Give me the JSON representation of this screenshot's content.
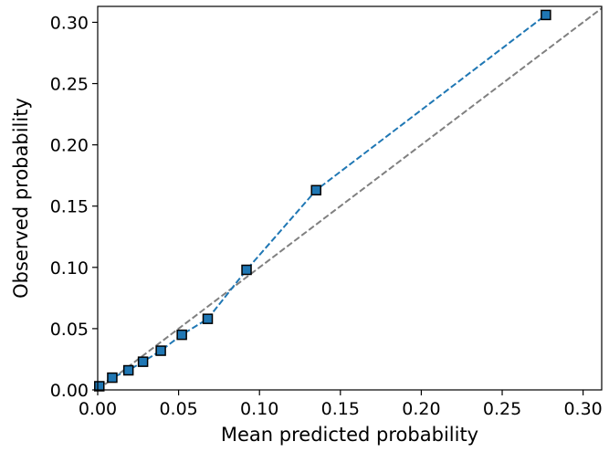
{
  "chart_data": {
    "type": "line",
    "title": "",
    "xlabel": "Mean predicted probability",
    "ylabel": "Observed probability",
    "xlim": [
      0.0,
      0.3115
    ],
    "ylim": [
      0.0,
      0.313
    ],
    "xticks": [
      "0.00",
      "0.05",
      "0.10",
      "0.15",
      "0.20",
      "0.25",
      "0.30"
    ],
    "yticks": [
      "0.00",
      "0.05",
      "0.10",
      "0.15",
      "0.20",
      "0.25",
      "0.30"
    ],
    "grid": false,
    "legend": "none",
    "series": [
      {
        "style": "dashed",
        "marker": "square",
        "color": "#1f77b4",
        "x": [
          0.001,
          0.009,
          0.019,
          0.028,
          0.039,
          0.052,
          0.068,
          0.092,
          0.135,
          0.277
        ],
        "y": [
          0.003,
          0.01,
          0.016,
          0.023,
          0.032,
          0.045,
          0.058,
          0.098,
          0.163,
          0.306
        ]
      }
    ],
    "reference_line": {
      "style": "dashed",
      "color": "#808080",
      "x": [
        0.0,
        0.3115
      ],
      "y": [
        0.0,
        0.3115
      ]
    }
  }
}
